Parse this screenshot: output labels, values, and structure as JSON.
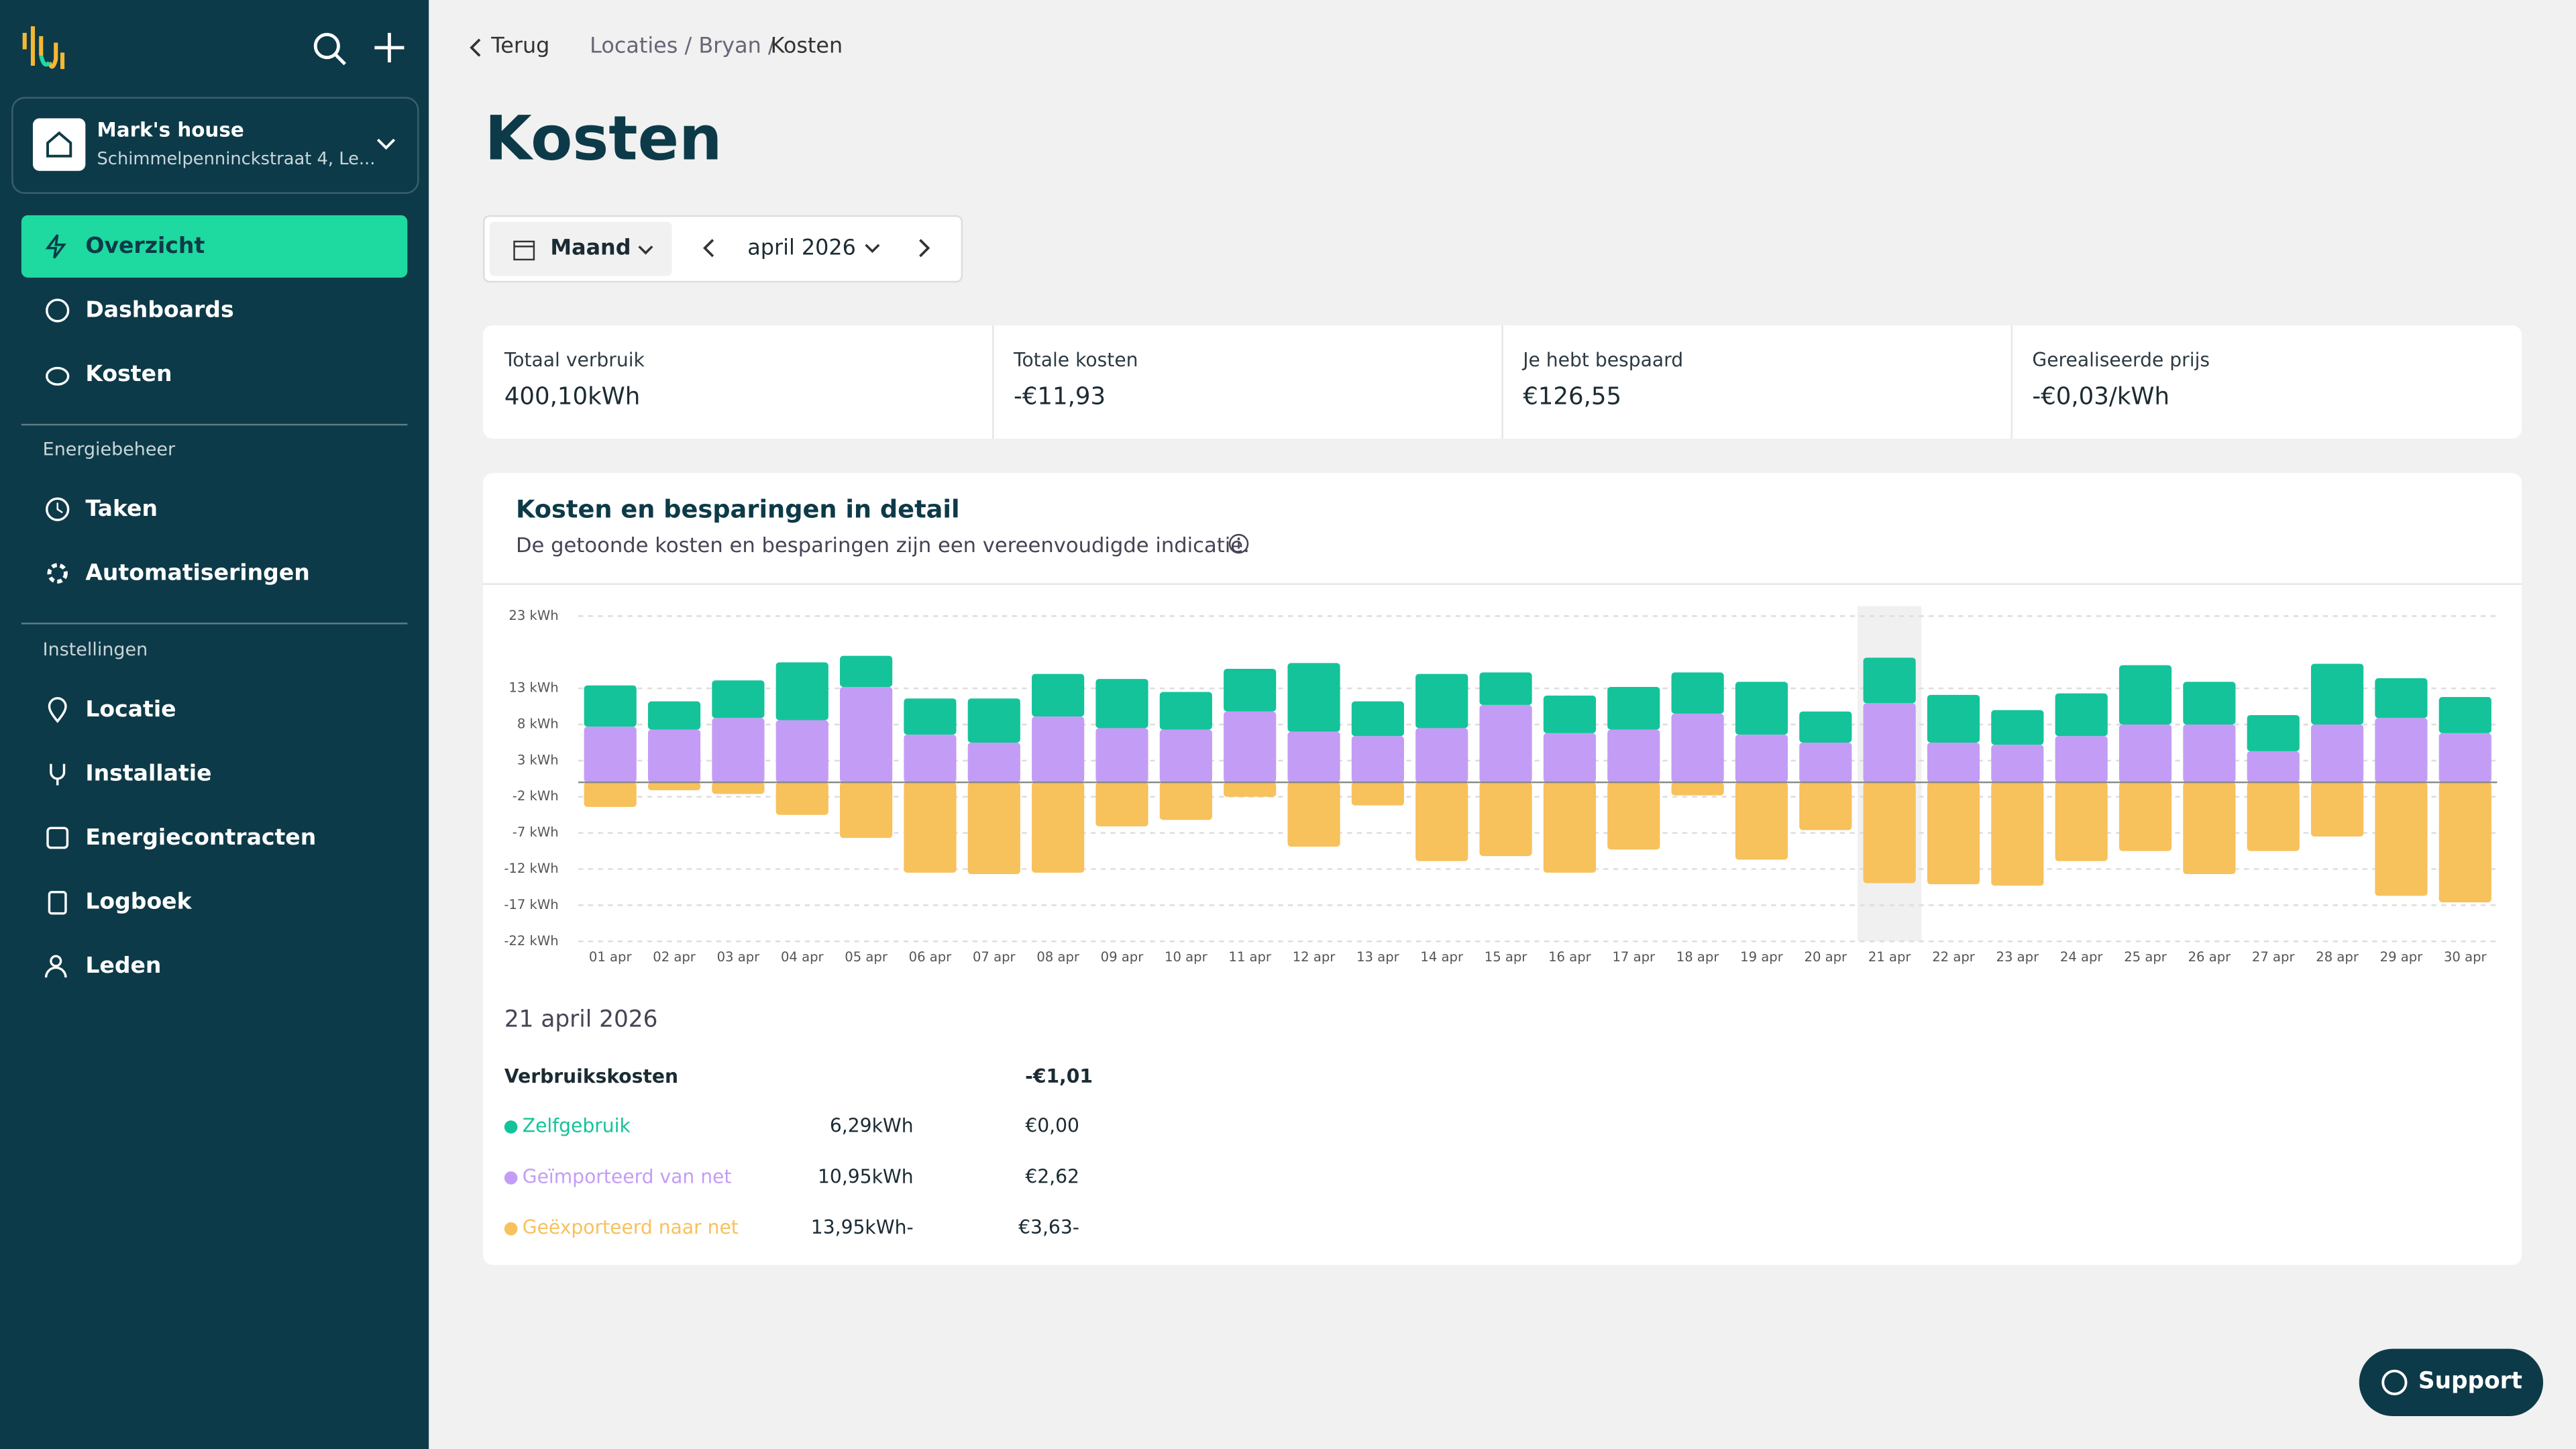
{
  "sidebar": {
    "house_name": "Mark's house",
    "house_address": "Schimmelpenninckstraat 4, Le...",
    "nav": [
      "Overzicht",
      "Dashboards",
      "Kosten"
    ],
    "section1": "Energiebeheer",
    "nav2": [
      "Taken",
      "Automatiseringen"
    ],
    "section2": "Instellingen",
    "nav3": [
      "Locatie",
      "Installatie",
      "Energiecontracten",
      "Logboek",
      "Leden"
    ]
  },
  "breadcrumb": {
    "back": "Terug",
    "path": "Locaties / Bryan /",
    "current": "Kosten"
  },
  "title": "Kosten",
  "period": {
    "mode": "Maand",
    "month": "april 2026"
  },
  "stats": [
    {
      "label": "Totaal verbruik",
      "value": "400,10kWh"
    },
    {
      "label": "Totale kosten",
      "value": "-€11,93"
    },
    {
      "label": "Je hebt bespaard",
      "value": "€126,55"
    },
    {
      "label": "Gerealiseerde prijs",
      "value": "-€0,03/kWh"
    }
  ],
  "chart_data": {
    "type": "bar",
    "stacked": true,
    "title": "Kosten en besparingen in detail",
    "subtitle": "De getoonde kosten en besparingen zijn een vereenvoudigde indicatie.",
    "categories": [
      "01 apr",
      "02 apr",
      "03 apr",
      "04 apr",
      "05 apr",
      "06 apr",
      "07 apr",
      "08 apr",
      "09 apr",
      "10 apr",
      "11 apr",
      "12 apr",
      "13 apr",
      "14 apr",
      "15 apr",
      "16 apr",
      "17 apr",
      "18 apr",
      "19 apr",
      "20 apr",
      "21 apr",
      "22 apr",
      "23 apr",
      "24 apr",
      "25 apr",
      "26 apr",
      "27 apr",
      "28 apr",
      "29 apr",
      "30 apr"
    ],
    "series": [
      {
        "name": "Geïmporteerd van net",
        "color": "#c39df5",
        "values": [
          7.7,
          7.3,
          8.9,
          8.6,
          13.2,
          6.6,
          5.5,
          9.1,
          7.5,
          7.3,
          9.8,
          7.0,
          6.4,
          7.5,
          10.7,
          6.8,
          7.3,
          9.5,
          6.6,
          5.5,
          10.95,
          5.5,
          5.2,
          6.4,
          8.0,
          8.0,
          4.3,
          8.0,
          8.9,
          6.8
        ]
      },
      {
        "name": "Zelfgebruik",
        "color": "#14c39a",
        "values": [
          5.7,
          3.9,
          5.2,
          8.0,
          4.3,
          5.0,
          6.1,
          5.9,
          6.8,
          5.2,
          5.9,
          9.5,
          4.8,
          7.5,
          4.5,
          5.2,
          5.9,
          5.7,
          7.3,
          4.3,
          6.29,
          6.6,
          4.8,
          5.9,
          8.2,
          5.9,
          5.0,
          8.4,
          5.5,
          5.0
        ]
      },
      {
        "name": "Geëxporteerd naar net",
        "color": "#f7c15c",
        "values": [
          -3.4,
          -1.1,
          -1.6,
          -4.5,
          -7.7,
          -12.5,
          -12.7,
          -12.5,
          -6.1,
          -5.2,
          -2.0,
          -8.9,
          -3.2,
          -10.9,
          -10.2,
          -12.5,
          -9.3,
          -1.8,
          -10.7,
          -6.6,
          -13.95,
          -14.1,
          -14.3,
          -10.9,
          -9.5,
          -12.7,
          -9.5,
          -7.5,
          -15.7,
          -16.6
        ]
      }
    ],
    "ylim": [
      -22,
      23
    ],
    "yticks": [
      {
        "value": -22,
        "label": "-22 kWh"
      },
      {
        "value": -17,
        "label": "-17 kWh"
      },
      {
        "value": -12,
        "label": "-12 kWh"
      },
      {
        "value": -7,
        "label": "-7 kWh"
      },
      {
        "value": -2,
        "label": "-2 kWh"
      },
      {
        "value": 3,
        "label": "3 kWh"
      },
      {
        "value": 8,
        "label": "8 kWh"
      },
      {
        "value": 13,
        "label": "13 kWh"
      },
      {
        "value": 23,
        "label": "23 kWh"
      }
    ],
    "grid": true
  },
  "detail": {
    "date": "21 april 2026",
    "total_label": "Verbruikskosten",
    "total_value": "-€1,01",
    "rows": [
      {
        "kwh": "6,29kWh",
        "cost": "€0,00"
      },
      {
        "kwh": "10,95kWh",
        "cost": "€2,62"
      },
      {
        "kwh": "-13,95kWh",
        "cost": "-€3,63"
      }
    ]
  },
  "support": "Support"
}
